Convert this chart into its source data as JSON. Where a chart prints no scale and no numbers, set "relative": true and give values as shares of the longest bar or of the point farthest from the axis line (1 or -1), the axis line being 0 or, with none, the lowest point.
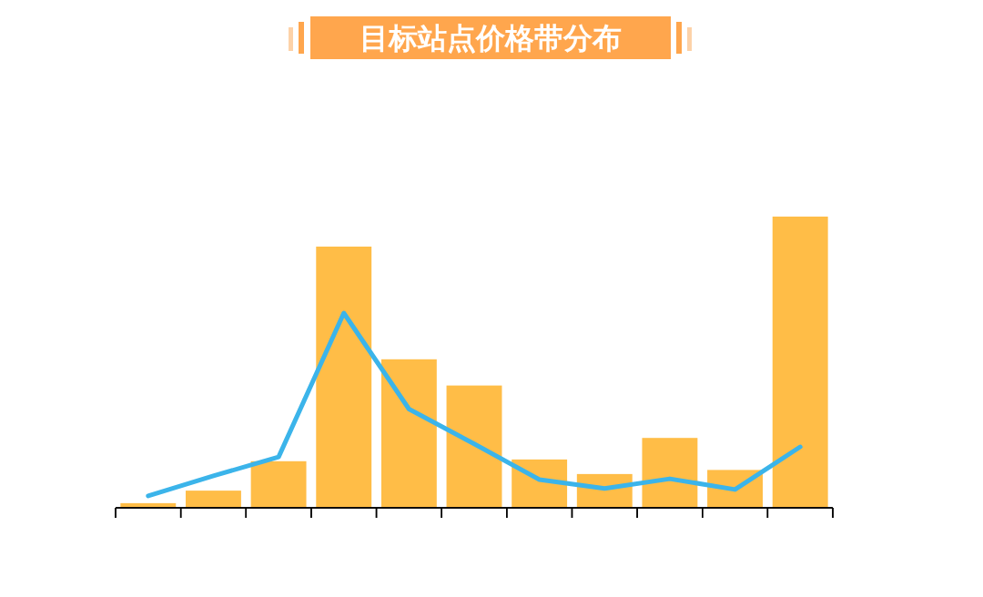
{
  "chart_data": [
    {
      "type": "bar",
      "title": "目标站点价格带分布",
      "relative": true,
      "color": "#ffbd47",
      "categories": [
        null,
        null,
        null,
        null,
        null,
        null,
        null,
        null,
        null,
        null,
        null
      ],
      "values": [
        0.016,
        0.059,
        0.16,
        0.897,
        0.51,
        0.42,
        0.166,
        0.116,
        0.24,
        0.13,
        1
      ]
    },
    {
      "type": "line",
      "relative": true,
      "color": "#3bb4ea",
      "categories": [
        null,
        null,
        null,
        null,
        null,
        null,
        null,
        null,
        null,
        null,
        null
      ],
      "values": [
        0.061,
        0.164,
        0.261,
        1,
        0.507,
        0.328,
        0.145,
        0.099,
        0.149,
        0.094,
        0.313
      ]
    }
  ]
}
